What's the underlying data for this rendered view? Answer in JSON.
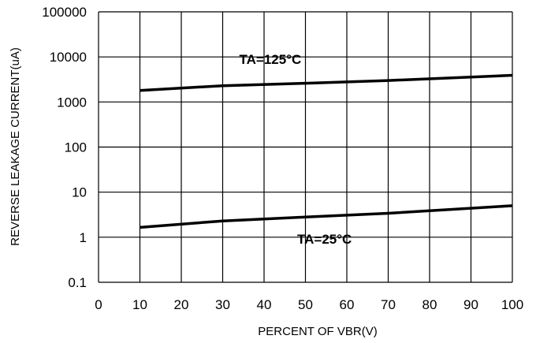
{
  "chart_data": {
    "type": "line",
    "title": "",
    "xlabel": "PERCENT OF VBR(V)",
    "ylabel": "REVERSE LEAKAGE CURRENT(uA)",
    "xlim": [
      0,
      100
    ],
    "ylim": [
      0.1,
      100000
    ],
    "yscale": "log",
    "grid": true,
    "x_ticks": [
      "0",
      "10",
      "20",
      "30",
      "40",
      "50",
      "60",
      "70",
      "80",
      "90",
      "100"
    ],
    "y_ticks": [
      "100000",
      "10000",
      "1000",
      "100",
      "10",
      "1",
      "0.1"
    ],
    "series": [
      {
        "name": "TA=125°C",
        "x": [
          10,
          30,
          50,
          70,
          100
        ],
        "y": [
          1800,
          2300,
          2600,
          3000,
          3900
        ]
      },
      {
        "name": "TA=25°C",
        "x": [
          10,
          30,
          50,
          70,
          100
        ],
        "y": [
          1.65,
          2.3,
          2.8,
          3.4,
          5.0
        ]
      }
    ]
  }
}
